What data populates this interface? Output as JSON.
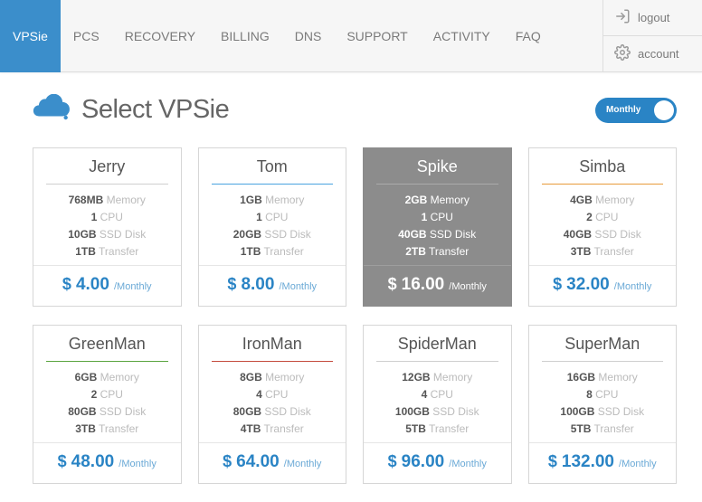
{
  "nav": {
    "tabs": [
      {
        "label": "VPSie",
        "active": true
      },
      {
        "label": "PCS"
      },
      {
        "label": "RECOVERY"
      },
      {
        "label": "BILLING"
      },
      {
        "label": "DNS"
      },
      {
        "label": "SUPPORT"
      },
      {
        "label": "ACTIVITY"
      },
      {
        "label": "FAQ"
      }
    ],
    "account": {
      "logout": "logout",
      "account": "account"
    }
  },
  "page": {
    "title": "Select VPSie",
    "toggle_label": "Monthly",
    "billing_period": "/Monthly",
    "currency_symbol": "$",
    "spec_labels": {
      "memory": "Memory",
      "cpu": "CPU",
      "disk": "SSD Disk",
      "transfer": "Transfer"
    }
  },
  "colors": {
    "brand": "#3b8ecb",
    "toggle": "#2a84c5",
    "price": "#2a84c5",
    "selected_bg": "#8c8c8c"
  },
  "plans": [
    {
      "name": "Jerry",
      "memory": "768MB",
      "cpu": "1",
      "disk": "10GB",
      "transfer": "1TB",
      "price": "4.00",
      "accent": "#cfcfcf",
      "selected": false
    },
    {
      "name": "Tom",
      "memory": "1GB",
      "cpu": "1",
      "disk": "20GB",
      "transfer": "1TB",
      "price": "8.00",
      "accent": "#4aa3df",
      "selected": false
    },
    {
      "name": "Spike",
      "memory": "2GB",
      "cpu": "1",
      "disk": "40GB",
      "transfer": "2TB",
      "price": "16.00",
      "accent": "#8c8c8c",
      "selected": true
    },
    {
      "name": "Simba",
      "memory": "4GB",
      "cpu": "2",
      "disk": "40GB",
      "transfer": "3TB",
      "price": "32.00",
      "accent": "#e89b3b",
      "selected": false
    },
    {
      "name": "GreenMan",
      "memory": "6GB",
      "cpu": "2",
      "disk": "80GB",
      "transfer": "3TB",
      "price": "48.00",
      "accent": "#5aa43f",
      "selected": false
    },
    {
      "name": "IronMan",
      "memory": "8GB",
      "cpu": "4",
      "disk": "80GB",
      "transfer": "4TB",
      "price": "64.00",
      "accent": "#c44b3d",
      "selected": false
    },
    {
      "name": "SpiderMan",
      "memory": "12GB",
      "cpu": "4",
      "disk": "100GB",
      "transfer": "5TB",
      "price": "96.00",
      "accent": "#cfcfcf",
      "selected": false
    },
    {
      "name": "SuperMan",
      "memory": "16GB",
      "cpu": "8",
      "disk": "100GB",
      "transfer": "5TB",
      "price": "132.00",
      "accent": "#cfcfcf",
      "selected": false
    }
  ]
}
